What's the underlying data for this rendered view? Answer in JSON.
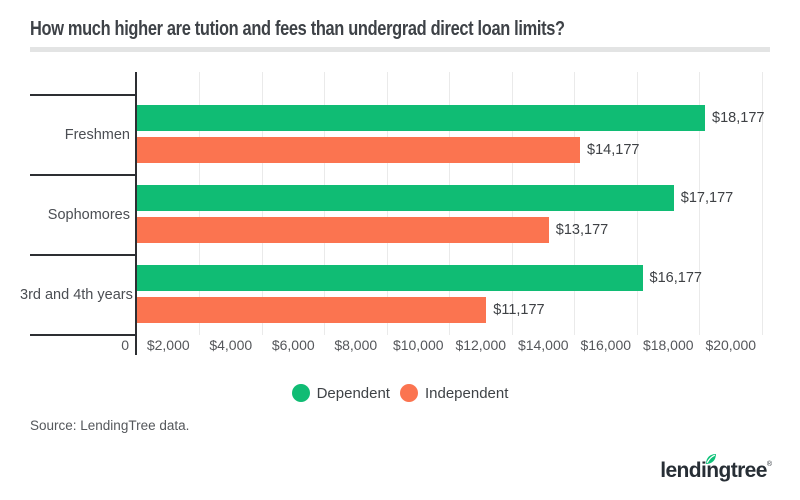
{
  "header": {
    "title": "How much higher are tution and fees than undergrad direct loan limits?"
  },
  "chart_data": {
    "type": "bar",
    "orientation": "horizontal",
    "title": "How much higher are tution and fees than undergrad direct loan limits?",
    "categories": [
      "Freshmen",
      "Sophomores",
      "3rd and 4th years"
    ],
    "series": [
      {
        "name": "Dependent",
        "color": "#10bc74",
        "values": [
          18177,
          17177,
          16177
        ],
        "value_labels": [
          "$18,177",
          "$17,177",
          "$16,177"
        ]
      },
      {
        "name": "Independent",
        "color": "#fb7450",
        "values": [
          14177,
          13177,
          11177
        ],
        "value_labels": [
          "$14,177",
          "$13,177",
          "$11,177"
        ]
      }
    ],
    "xlim": [
      0,
      20000
    ],
    "x_tick_step": 2000,
    "x_tick_labels": [
      "0",
      "$2,000",
      "$4,000",
      "$6,000",
      "$8,000",
      "$10,000",
      "$12,000",
      "$14,000",
      "$16,000",
      "$18,000",
      "$20,000"
    ],
    "grid": true,
    "legend_position": "bottom"
  },
  "legend": {
    "items": [
      {
        "label": "Dependent",
        "color": "#10bc74"
      },
      {
        "label": "Independent",
        "color": "#fb7450"
      }
    ]
  },
  "footer": {
    "source": "Source: LendingTree data.",
    "logo_text": "lendingtree",
    "logo_mark": "®"
  },
  "colors": {
    "dependent_green": "#10bc74",
    "independent_orange": "#fb7450",
    "axis_dark": "#2d2f33",
    "gridline": "#eaeaea",
    "leaf_green": "#0cc178"
  }
}
